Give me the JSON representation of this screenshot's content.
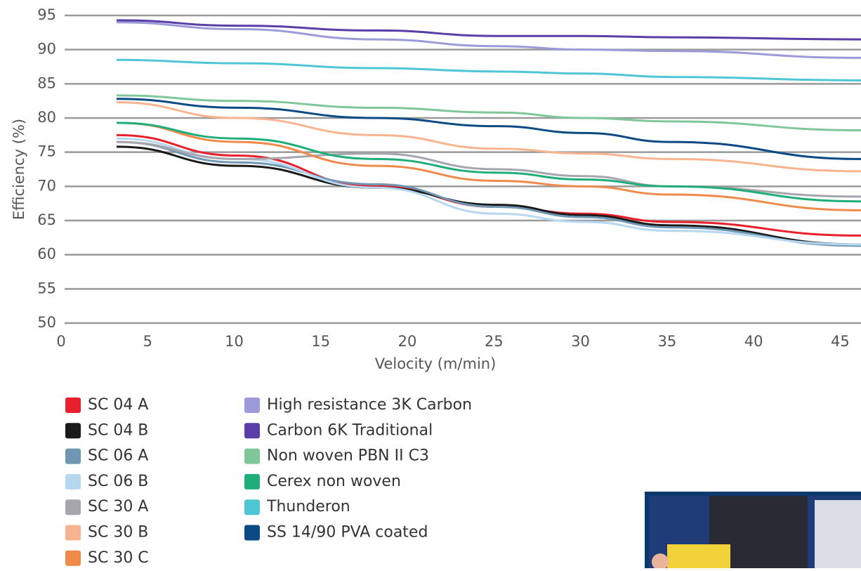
{
  "chart_data": {
    "type": "line",
    "x_label": "Velocity (m/min)",
    "y_label": "Efficiency (%)",
    "x": [
      3,
      10,
      18,
      25,
      30,
      35,
      46
    ],
    "xlim": [
      0,
      46
    ],
    "xticks": [
      0,
      5,
      10,
      15,
      20,
      25,
      30,
      35,
      40,
      45
    ],
    "ylim": [
      50,
      95
    ],
    "yticks": [
      50,
      55,
      60,
      65,
      70,
      75,
      80,
      85,
      90,
      95
    ],
    "grid": true,
    "series": [
      {
        "name": "SC 04 A",
        "color": "#e8202e",
        "values": [
          77.5,
          74.5,
          70,
          67,
          66,
          64.8,
          62.8
        ]
      },
      {
        "name": "SC 04 B",
        "color": "#1a1a1a",
        "values": [
          75.8,
          73,
          69.8,
          67.3,
          65.8,
          64.3,
          61.5
        ]
      },
      {
        "name": "SC 06 A",
        "color": "#6f97b3",
        "values": [
          76.5,
          73.5,
          70.3,
          67,
          65.5,
          64,
          61.3
        ]
      },
      {
        "name": "SC 06 B",
        "color": "#b5d8f0",
        "values": [
          77,
          74,
          69.8,
          66,
          64.8,
          63.5,
          61.5
        ]
      },
      {
        "name": "SC 30 A",
        "color": "#a6a6ae",
        "values": [
          76.5,
          74,
          74.8,
          72.5,
          71.5,
          70,
          68.5
        ]
      },
      {
        "name": "SC 30 B",
        "color": "#f7b48e",
        "values": [
          82.3,
          80,
          77.5,
          75.5,
          74.8,
          74,
          72.2
        ]
      },
      {
        "name": "SC 30 C",
        "color": "#f08a4b",
        "values": [
          79.3,
          76.5,
          73,
          70.8,
          70,
          68.8,
          66.5
        ]
      },
      {
        "name": "High resistance 3K Carbon",
        "color": "#9c9ad8",
        "values": [
          94,
          93,
          91.5,
          90.5,
          90,
          89.8,
          88.8
        ]
      },
      {
        "name": "Carbon 6K Traditional",
        "color": "#5a3ea8",
        "values": [
          94.3,
          93.5,
          92.8,
          92,
          92,
          91.8,
          91.5
        ]
      },
      {
        "name": "Non woven PBN II C3",
        "color": "#7fc79a",
        "values": [
          83.3,
          82.5,
          81.5,
          80.8,
          80,
          79.5,
          78.2
        ]
      },
      {
        "name": "Cerex non woven",
        "color": "#1fae7a",
        "values": [
          79.3,
          77,
          74,
          72,
          71,
          70,
          67.8
        ]
      },
      {
        "name": "Thunderon",
        "color": "#4fc6d6",
        "values": [
          88.5,
          88,
          87.3,
          86.8,
          86.5,
          86,
          85.5
        ]
      },
      {
        "name": "SS 14/90 PVA coated",
        "color": "#0c4a86",
        "values": [
          82.8,
          81.5,
          80,
          78.8,
          77.8,
          76.5,
          74
        ]
      }
    ]
  }
}
